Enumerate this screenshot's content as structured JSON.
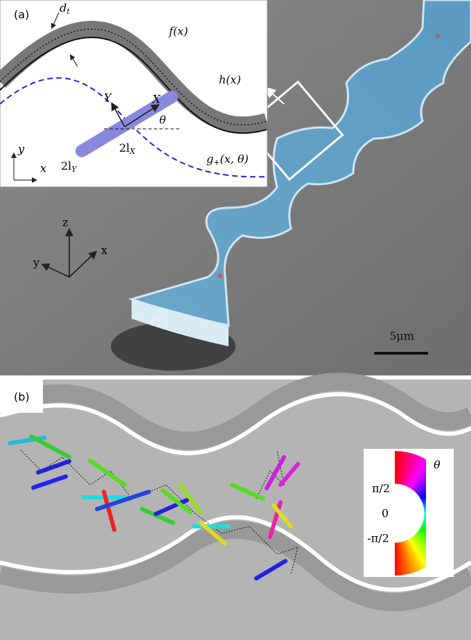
{
  "panel_a": {
    "label": "(a)",
    "inset": {
      "thickness": {
        "main": "d",
        "sub": "t"
      },
      "outer_wall": "f(x)",
      "inner_wall": "h(x)",
      "body_y": "Y",
      "body_x": "X",
      "angle": "θ",
      "frame_y": "y",
      "frame_x": "x",
      "width": {
        "main": "2l",
        "sub": "Y"
      },
      "length": {
        "main": "2l",
        "sub": "X"
      },
      "boundary": {
        "main": "g",
        "sub": "+",
        "rest": "(x, θ)"
      }
    },
    "axes": {
      "z": "z",
      "y": "y",
      "x": "x"
    },
    "height": "H",
    "scale_bar": "5μm"
  },
  "panel_b": {
    "label": "(b)",
    "colorbar": {
      "title": "θ",
      "ticks": [
        "π/2",
        "0",
        "-π/2"
      ]
    }
  }
}
